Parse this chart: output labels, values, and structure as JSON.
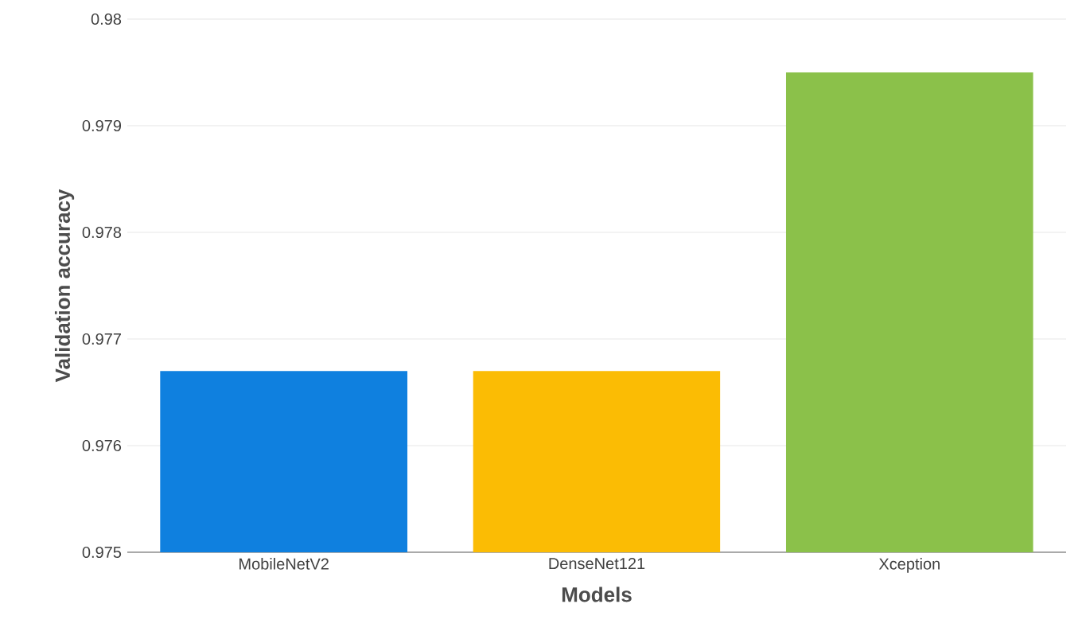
{
  "chart_data": {
    "type": "bar",
    "xlabel": "Models",
    "ylabel": "Validation accuracy",
    "categories": [
      "MobileNetV2",
      "DenseNet121",
      "Xception"
    ],
    "values": [
      0.9767,
      0.9767,
      0.9795
    ],
    "colors": [
      "#0f80df",
      "#fbbc04",
      "#8bc14a"
    ],
    "ylim": [
      0.975,
      0.98
    ],
    "yticks": [
      0.975,
      0.976,
      0.977,
      0.978,
      0.979,
      0.98
    ],
    "grid": "y"
  }
}
